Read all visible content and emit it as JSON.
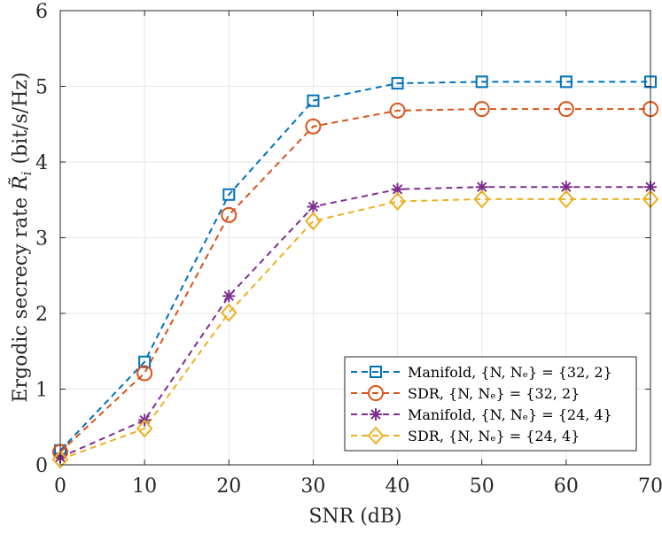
{
  "chart_data": {
    "type": "line",
    "title": "",
    "xlabel": "SNR (dB)",
    "ylabel_prefix": "Ergodic secrecy rate",
    "ylabel_symbol": "R̃",
    "ylabel_subscript": "i",
    "ylabel_suffix": "(bit/s/Hz)",
    "xlim": [
      0,
      70
    ],
    "ylim": [
      0,
      6
    ],
    "xticks": [
      0,
      10,
      20,
      30,
      40,
      50,
      60,
      70
    ],
    "yticks": [
      0,
      1,
      2,
      3,
      4,
      5,
      6
    ],
    "grid": true,
    "legend_position": "bottom-right",
    "x": [
      0,
      10,
      20,
      30,
      40,
      50,
      60,
      70
    ],
    "series": [
      {
        "name": "Manifold, {N, Nₑ} = {32, 2}",
        "color": "#0072BD",
        "marker": "square",
        "values": [
          0.19,
          1.36,
          3.57,
          4.81,
          5.04,
          5.06,
          5.06,
          5.06
        ]
      },
      {
        "name": "SDR, {N, Nₑ} = {32, 2}",
        "color": "#D95319",
        "marker": "circle",
        "values": [
          0.17,
          1.21,
          3.3,
          4.47,
          4.68,
          4.7,
          4.7,
          4.7
        ]
      },
      {
        "name": "Manifold, {N, Nₑ} = {24, 4}",
        "color": "#7E2F8E",
        "marker": "asterisk",
        "values": [
          0.1,
          0.59,
          2.23,
          3.41,
          3.64,
          3.67,
          3.67,
          3.67
        ]
      },
      {
        "name": "SDR, {N, Nₑ} = {24, 4}",
        "color": "#EDB120",
        "marker": "diamond",
        "values": [
          0.07,
          0.48,
          2.01,
          3.22,
          3.48,
          3.51,
          3.51,
          3.51
        ]
      }
    ]
  }
}
